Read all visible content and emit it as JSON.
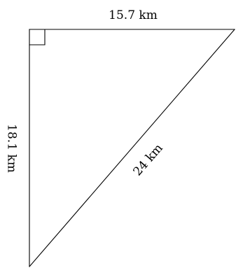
{
  "diagram": {
    "type": "right-triangle",
    "labels": {
      "top_side": "15.7 km",
      "left_side": "18.1 km",
      "hypotenuse": "24 km"
    },
    "right_angle_marker": true,
    "colors": {
      "stroke": "#000000",
      "text": "#000000",
      "background": "#ffffff"
    }
  }
}
